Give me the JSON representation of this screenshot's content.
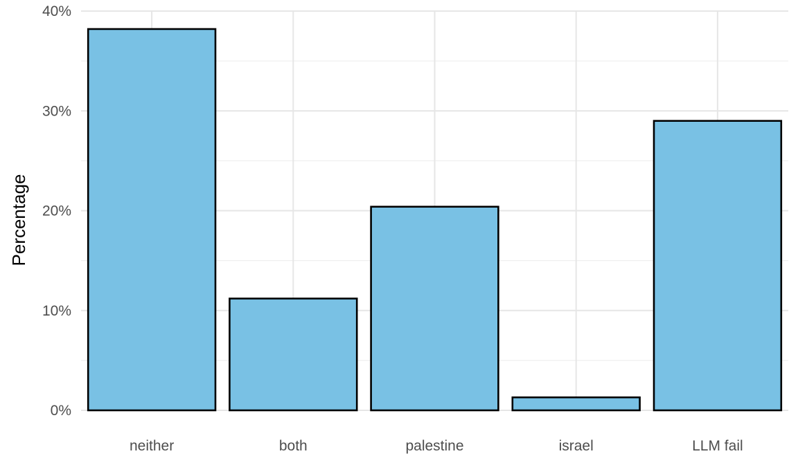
{
  "chart_data": {
    "type": "bar",
    "categories": [
      "neither",
      "both",
      "palestine",
      "israel",
      "LLM fail"
    ],
    "values": [
      38.2,
      11.2,
      20.4,
      1.3,
      29.0
    ],
    "xlabel": "",
    "ylabel": "Percentage",
    "ylim": [
      0,
      40
    ],
    "yticks": [
      0,
      10,
      20,
      30,
      40
    ],
    "ytick_labels": [
      "0%",
      "10%",
      "20%",
      "30%",
      "40%"
    ],
    "grid": true,
    "bar_color": "#79c1e4",
    "bar_edge_color": "#000000"
  }
}
